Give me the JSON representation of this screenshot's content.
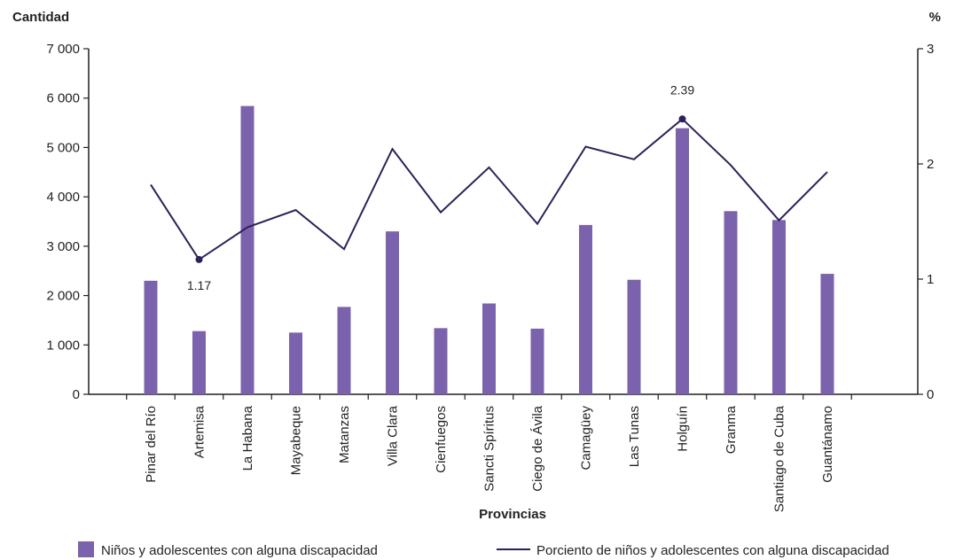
{
  "chart_data": {
    "type": "bar+line",
    "y_left_title": "Cantidad",
    "y_right_title": "%",
    "x_title": "Provincias",
    "y_left_lim": [
      0,
      7000
    ],
    "y_left_ticks": [
      0,
      1000,
      2000,
      3000,
      4000,
      5000,
      6000,
      7000
    ],
    "y_left_tick_labels": [
      "0",
      "1 000",
      "2 000",
      "3 000",
      "4 000",
      "5 000",
      "6 000",
      "7 000"
    ],
    "y_right_lim": [
      0,
      3
    ],
    "y_right_ticks": [
      0,
      1,
      2,
      3
    ],
    "y_right_tick_labels": [
      "0",
      "1",
      "2",
      "3"
    ],
    "categories": [
      "Pinar del Río",
      "Artemisa",
      "La Habana",
      "Mayabeque",
      "Matanzas",
      "Villa Clara",
      "Cienfuegos",
      "Sancti Spíritus",
      "Ciego de Ávila",
      "Camagüey",
      "Las Tunas",
      "Holguín",
      "Granma",
      "Santiago de Cuba",
      "Guantánamo"
    ],
    "series": [
      {
        "name": "Niños y adolescentes con alguna discapacidad",
        "type": "bar",
        "axis": "left",
        "color": "#7b62ad",
        "values": [
          2300,
          1280,
          5840,
          1250,
          1770,
          3300,
          1340,
          1840,
          1330,
          3430,
          2320,
          5390,
          3710,
          3530,
          2440
        ]
      },
      {
        "name": "Porciento de niños y adolescentes con alguna discapacidad",
        "type": "line",
        "axis": "right",
        "color": "#2e2058",
        "values": [
          1.82,
          1.17,
          1.45,
          1.6,
          1.26,
          2.13,
          1.58,
          1.97,
          1.48,
          2.15,
          2.04,
          2.39,
          1.99,
          1.51,
          1.93
        ]
      }
    ],
    "annotations": [
      {
        "category": "Artemisa",
        "text": "1.17",
        "value": 1.17
      },
      {
        "category": "Holguín",
        "text": "2.39",
        "value": 2.39
      }
    ],
    "legend_position": "bottom",
    "grid": false
  }
}
